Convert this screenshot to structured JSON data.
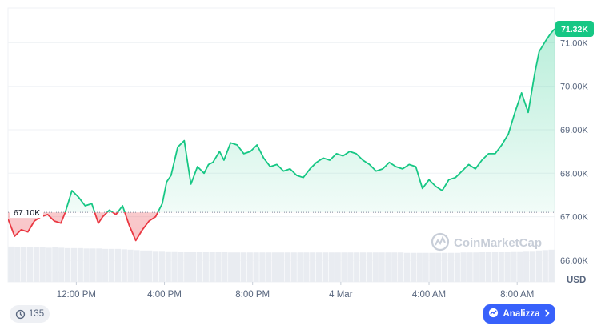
{
  "chart_data": {
    "type": "line",
    "currency": "USD",
    "ylim": [
      65500,
      71800
    ],
    "y_ticks": [
      "71.00K",
      "70.00K",
      "69.00K",
      "68.00K",
      "67.00K",
      "66.00K"
    ],
    "y_tick_values": [
      71000,
      70000,
      69000,
      68000,
      67000,
      66000
    ],
    "x_ticks": [
      "12:00 PM",
      "4:00 PM",
      "8:00 PM",
      "4 Mar",
      "4:00 AM",
      "8:00 AM"
    ],
    "x_tick_hours": [
      12,
      16,
      20,
      24,
      28,
      32
    ],
    "x_range_hours": [
      8.9,
      33.7
    ],
    "reference": {
      "label": "67.10K",
      "value": 67100
    },
    "last_price": {
      "label": "71.32K",
      "value": 71320
    },
    "series": [
      {
        "x_hours": [
          8.9,
          9.2,
          9.5,
          9.8,
          10.1,
          10.4,
          10.7,
          11.0,
          11.3,
          11.5,
          11.8,
          12.1,
          12.4,
          12.7,
          13.0,
          13.2,
          13.5,
          13.8,
          14.1,
          14.4,
          14.7,
          15.0,
          15.3,
          15.6,
          15.9,
          16.1,
          16.3,
          16.6,
          16.9,
          17.2,
          17.5,
          17.8,
          18.0,
          18.2,
          18.5,
          18.7,
          19.0,
          19.3,
          19.6,
          19.9,
          20.2,
          20.5,
          20.8,
          21.1,
          21.4,
          21.7,
          22.0,
          22.3,
          22.6,
          22.9,
          23.2,
          23.5,
          23.8,
          24.1,
          24.4,
          24.7,
          25.0,
          25.3,
          25.6,
          25.9,
          26.2,
          26.5,
          26.8,
          27.1,
          27.4,
          27.7,
          28.0,
          28.3,
          28.6,
          28.9,
          29.2,
          29.5,
          29.8,
          30.1,
          30.4,
          30.7,
          31.0,
          31.3,
          31.6,
          31.9,
          32.2,
          32.5,
          32.8,
          33.0,
          33.3,
          33.5,
          33.7
        ],
        "values": [
          66950,
          66550,
          66700,
          66650,
          66900,
          67000,
          67050,
          66900,
          66850,
          67100,
          67600,
          67450,
          67250,
          67300,
          66850,
          67000,
          67150,
          67050,
          67250,
          66800,
          66450,
          66700,
          66900,
          67000,
          67300,
          67800,
          67950,
          68600,
          68750,
          67750,
          68150,
          68000,
          68200,
          68250,
          68500,
          68300,
          68700,
          68650,
          68450,
          68500,
          68650,
          68350,
          68150,
          68200,
          68050,
          68100,
          67950,
          67900,
          68100,
          68250,
          68350,
          68300,
          68450,
          68400,
          68500,
          68450,
          68300,
          68200,
          68050,
          68100,
          68250,
          68150,
          68100,
          68200,
          68150,
          67650,
          67850,
          67700,
          67600,
          67850,
          67900,
          68050,
          68200,
          68100,
          68300,
          68450,
          68450,
          68650,
          68900,
          69400,
          69850,
          69400,
          70300,
          70800,
          71050,
          71200,
          71320
        ],
        "volume": [
          0.9,
          0.88,
          0.88,
          0.89,
          0.88,
          0.88,
          0.87,
          0.88,
          0.87,
          0.86,
          0.86,
          0.86,
          0.85,
          0.85,
          0.85,
          0.84,
          0.84,
          0.84,
          0.83,
          0.82,
          0.81,
          0.8,
          0.8,
          0.79,
          0.79,
          0.78,
          0.78,
          0.77,
          0.77,
          0.77,
          0.76,
          0.76,
          0.76,
          0.76,
          0.76,
          0.75,
          0.75,
          0.75,
          0.75,
          0.75,
          0.75,
          0.75,
          0.75,
          0.75,
          0.75,
          0.75,
          0.75,
          0.75,
          0.75,
          0.75,
          0.75,
          0.75,
          0.75,
          0.75,
          0.75,
          0.75,
          0.75,
          0.75,
          0.75,
          0.75,
          0.75,
          0.75,
          0.75,
          0.74,
          0.74,
          0.74,
          0.74,
          0.74,
          0.74,
          0.74,
          0.74,
          0.74,
          0.75,
          0.75,
          0.75,
          0.76,
          0.76,
          0.76,
          0.77,
          0.77,
          0.78,
          0.78,
          0.79,
          0.79,
          0.8,
          0.81,
          0.82
        ]
      }
    ],
    "colors": {
      "up": "#16c784",
      "down": "#ea3943",
      "grid": "#eff2f5"
    }
  },
  "watermark": {
    "text": "CoinMarketCap"
  },
  "controls": {
    "zoom_count": "135",
    "analyze_label": "Analizza"
  },
  "icons": {
    "zoom": "history-icon",
    "analyze": "chart-icon",
    "chevron": "chevron-right-icon"
  }
}
